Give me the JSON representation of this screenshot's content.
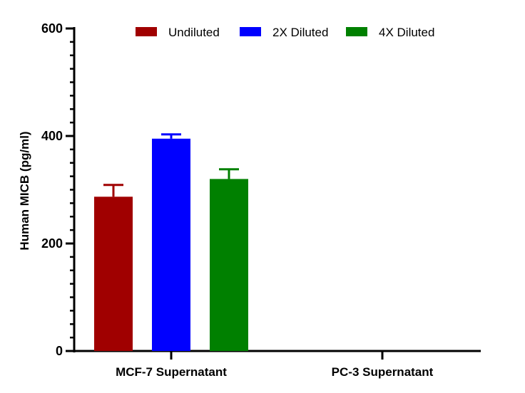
{
  "chart_data": {
    "type": "bar",
    "categories": [
      "MCF-7 Supernatant",
      "PC-3 Supernatant"
    ],
    "series": [
      {
        "name": "Undiluted",
        "color": "#a00000",
        "values": [
          287,
          0
        ],
        "errors": [
          22,
          0
        ]
      },
      {
        "name": "2X Diluted",
        "color": "#0000ff",
        "values": [
          395,
          0
        ],
        "errors": [
          8,
          0
        ]
      },
      {
        "name": "4X Diluted",
        "color": "#008000",
        "values": [
          320,
          0
        ],
        "errors": [
          18,
          0
        ]
      }
    ],
    "title": "",
    "xlabel": "",
    "ylabel": "Human MICB (pg/ml)",
    "ylim": [
      0,
      600
    ],
    "yticks": [
      0,
      200,
      400,
      600
    ],
    "yticks_labels": [
      "0",
      "200",
      "400",
      "600"
    ],
    "minor_tick_step": 25,
    "grid": false,
    "legend": "top"
  }
}
